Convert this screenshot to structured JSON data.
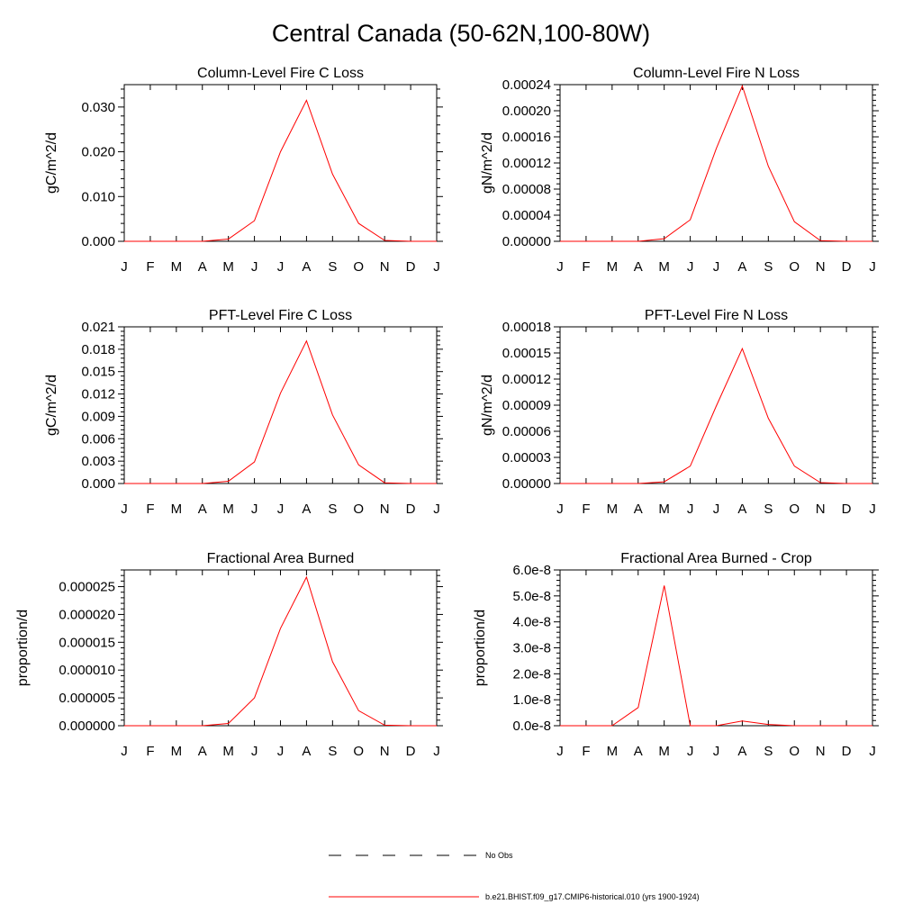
{
  "title": "Central Canada (50-62N,100-80W)",
  "months": [
    "J",
    "F",
    "M",
    "A",
    "M",
    "J",
    "J",
    "A",
    "S",
    "O",
    "N",
    "D",
    "J"
  ],
  "chart_data": [
    {
      "type": "line",
      "title": "Column-Level Fire C Loss",
      "ylabel": "gC/m^2/d",
      "ylim": [
        0,
        0.035
      ],
      "yticks": [
        0,
        0.01,
        0.02,
        0.03
      ],
      "yticklabels": [
        "0.000",
        "0.010",
        "0.020",
        "0.030"
      ],
      "x": [
        "J",
        "F",
        "M",
        "A",
        "M",
        "J",
        "J",
        "A",
        "S",
        "O",
        "N",
        "D",
        "J"
      ],
      "series": [
        {
          "name": "b.e21.BHIST.f09_g17.CMIP6-historical.010 (yrs 1900-1924)",
          "values": [
            0,
            0,
            0,
            0,
            0.0005,
            0.0046,
            0.02,
            0.0315,
            0.015,
            0.004,
            0.0002,
            0,
            0
          ]
        }
      ]
    },
    {
      "type": "line",
      "title": "Column-Level Fire N Loss",
      "ylabel": "gN/m^2/d",
      "ylim": [
        0,
        0.00024
      ],
      "yticks": [
        0,
        4e-05,
        8e-05,
        0.00012,
        0.00016,
        0.0002,
        0.00024
      ],
      "yticklabels": [
        "0.00000",
        "0.00004",
        "0.00008",
        "0.00012",
        "0.00016",
        "0.00020",
        "0.00024"
      ],
      "x": [
        "J",
        "F",
        "M",
        "A",
        "M",
        "J",
        "J",
        "A",
        "S",
        "O",
        "N",
        "D",
        "J"
      ],
      "series": [
        {
          "name": "b.e21.BHIST.f09_g17.CMIP6-historical.010 (yrs 1900-1924)",
          "values": [
            0,
            0,
            0,
            0,
            4e-06,
            3.3e-05,
            0.000142,
            0.000238,
            0.000115,
            3e-05,
            1e-06,
            0,
            0
          ]
        }
      ]
    },
    {
      "type": "line",
      "title": "PFT-Level Fire C Loss",
      "ylabel": "gC/m^2/d",
      "ylim": [
        0,
        0.021
      ],
      "yticks": [
        0,
        0.003,
        0.006,
        0.009,
        0.012,
        0.015,
        0.018,
        0.021
      ],
      "yticklabels": [
        "0.000",
        "0.003",
        "0.006",
        "0.009",
        "0.012",
        "0.015",
        "0.018",
        "0.021"
      ],
      "x": [
        "J",
        "F",
        "M",
        "A",
        "M",
        "J",
        "J",
        "A",
        "S",
        "O",
        "N",
        "D",
        "J"
      ],
      "series": [
        {
          "name": "b.e21.BHIST.f09_g17.CMIP6-historical.010 (yrs 1900-1924)",
          "values": [
            0,
            0,
            0,
            0,
            0.0003,
            0.0029,
            0.0121,
            0.0191,
            0.0092,
            0.0025,
            0.0001,
            0,
            0
          ]
        }
      ]
    },
    {
      "type": "line",
      "title": "PFT-Level Fire N Loss",
      "ylabel": "gN/m^2/d",
      "ylim": [
        0,
        0.00018
      ],
      "yticks": [
        0,
        3e-05,
        6e-05,
        9e-05,
        0.00012,
        0.00015,
        0.00018
      ],
      "yticklabels": [
        "0.00000",
        "0.00003",
        "0.00006",
        "0.00009",
        "0.00012",
        "0.00015",
        "0.00018"
      ],
      "x": [
        "J",
        "F",
        "M",
        "A",
        "M",
        "J",
        "J",
        "A",
        "S",
        "O",
        "N",
        "D",
        "J"
      ],
      "series": [
        {
          "name": "b.e21.BHIST.f09_g17.CMIP6-historical.010 (yrs 1900-1924)",
          "values": [
            0,
            0,
            0,
            0,
            2e-06,
            2e-05,
            8.9e-05,
            0.000155,
            7.5e-05,
            2e-05,
            1e-06,
            0,
            0
          ]
        }
      ]
    },
    {
      "type": "line",
      "title": "Fractional Area Burned",
      "ylabel": "proportion/d",
      "ylim": [
        0,
        2.8e-05
      ],
      "yticks": [
        0,
        5e-06,
        1e-05,
        1.5e-05,
        2e-05,
        2.5e-05
      ],
      "yticklabels": [
        "0.000000",
        "0.000005",
        "0.000010",
        "0.000015",
        "0.000020",
        "0.000025"
      ],
      "x": [
        "J",
        "F",
        "M",
        "A",
        "M",
        "J",
        "J",
        "A",
        "S",
        "O",
        "N",
        "D",
        "J"
      ],
      "series": [
        {
          "name": "b.e21.BHIST.f09_g17.CMIP6-historical.010 (yrs 1900-1924)",
          "values": [
            0,
            0,
            0,
            0,
            4e-07,
            5e-06,
            1.75e-05,
            2.67e-05,
            1.15e-05,
            2.7e-06,
            1e-07,
            0,
            0
          ]
        }
      ]
    },
    {
      "type": "line",
      "title": "Fractional Area Burned - Crop",
      "ylabel": "proportion/d",
      "ylim": [
        0,
        6e-08
      ],
      "yticks": [
        0,
        1e-08,
        2e-08,
        3e-08,
        4e-08,
        5e-08,
        6e-08
      ],
      "yticklabels": [
        "0.0e-8",
        "1.0e-8",
        "2.0e-8",
        "3.0e-8",
        "4.0e-8",
        "5.0e-8",
        "6.0e-8"
      ],
      "x": [
        "J",
        "F",
        "M",
        "A",
        "M",
        "J",
        "J",
        "A",
        "S",
        "O",
        "N",
        "D",
        "J"
      ],
      "series": [
        {
          "name": "b.e21.BHIST.f09_g17.CMIP6-historical.010 (yrs 1900-1924)",
          "values": [
            0,
            0,
            0,
            7e-09,
            5.4e-08,
            0,
            0,
            1.8e-09,
            5e-10,
            0,
            0,
            0,
            0
          ]
        }
      ]
    }
  ],
  "legend": [
    {
      "label": "No Obs",
      "color": "#000000",
      "style": "dashed"
    },
    {
      "label": "b.e21.BHIST.f09_g17.CMIP6-historical.010 (yrs 1900-1924)",
      "color": "#ff0000",
      "style": "solid"
    }
  ]
}
